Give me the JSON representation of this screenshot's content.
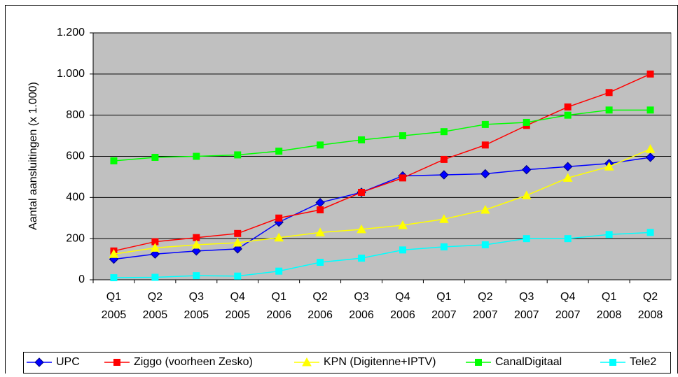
{
  "chart_data": {
    "type": "line",
    "y_label": "Aantal aansluitingen (x 1.000)",
    "categories": [
      "Q1 2005",
      "Q2 2005",
      "Q3 2005",
      "Q4 2005",
      "Q1 2006",
      "Q2 2006",
      "Q3 2006",
      "Q4 2006",
      "Q1 2007",
      "Q2 2007",
      "Q3 2007",
      "Q4 2007",
      "Q1 2008",
      "Q2 2008"
    ],
    "series": [
      {
        "name": "UPC",
        "color": "#0000ff",
        "marker": "diamond",
        "values": [
          100,
          125,
          140,
          150,
          280,
          375,
          425,
          505,
          510,
          515,
          535,
          550,
          565,
          595
        ]
      },
      {
        "name": "Ziggo (voorheen Zesko)",
        "color": "#ff0000",
        "marker": "square",
        "values": [
          140,
          185,
          205,
          225,
          300,
          340,
          425,
          495,
          585,
          655,
          750,
          840,
          910,
          1000
        ]
      },
      {
        "name": "KPN (Digitenne+IPTV)",
        "color": "#ffff00",
        "marker": "triangle",
        "values": [
          125,
          155,
          170,
          180,
          205,
          230,
          245,
          265,
          295,
          340,
          410,
          495,
          550,
          635
        ]
      },
      {
        "name": "CanalDigitaal",
        "color": "#00ff00",
        "marker": "square",
        "values": [
          578,
          595,
          600,
          607,
          625,
          655,
          680,
          700,
          720,
          755,
          765,
          800,
          825,
          825
        ]
      },
      {
        "name": "Tele2",
        "color": "#00ffff",
        "marker": "square",
        "values": [
          10,
          12,
          20,
          18,
          42,
          85,
          105,
          145,
          160,
          170,
          200,
          200,
          220,
          230
        ]
      }
    ],
    "ylim": [
      0,
      1200
    ],
    "yticks": [
      0,
      200,
      400,
      600,
      800,
      {
        "value": 1000,
        "label": "1.000"
      },
      {
        "value": 1200,
        "label": "1.200"
      }
    ],
    "grid": true,
    "plot_background": "#c0c0c0"
  }
}
